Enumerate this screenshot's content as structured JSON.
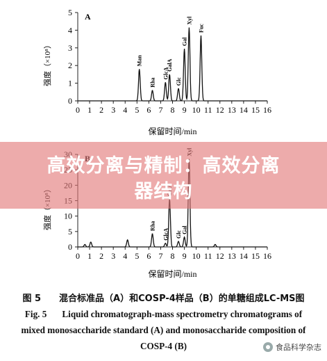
{
  "chart_data": [
    {
      "panel": "A",
      "type": "line",
      "ylabel": "强度（×10⁸）",
      "xlabel": "保留时间/min",
      "xlim": [
        0,
        16
      ],
      "ylim": [
        0,
        5
      ],
      "xticks": [
        0,
        1,
        2,
        3,
        4,
        5,
        6,
        7,
        8,
        9,
        10,
        11,
        12,
        13,
        14,
        15,
        16
      ],
      "yticks": [
        0,
        1,
        2,
        3,
        4,
        5
      ],
      "peaks": [
        {
          "label": "Man",
          "x": 5.2,
          "y": 1.8
        },
        {
          "label": "Rha",
          "x": 6.3,
          "y": 0.6
        },
        {
          "label": "GlcA",
          "x": 7.4,
          "y": 1.05
        },
        {
          "label": "GalA",
          "x": 7.75,
          "y": 1.5
        },
        {
          "label": "Glc",
          "x": 8.5,
          "y": 0.7
        },
        {
          "label": "Gal",
          "x": 9.0,
          "y": 2.95
        },
        {
          "label": "Xyl",
          "x": 9.4,
          "y": 4.15
        },
        {
          "label": "Fuc",
          "x": 10.4,
          "y": 3.7
        }
      ]
    },
    {
      "panel": "B",
      "type": "line",
      "ylabel": "强度（×10⁸）",
      "xlabel": "保留时间/min",
      "xlim": [
        0,
        16
      ],
      "ylim": [
        0,
        30
      ],
      "xticks": [
        0,
        1,
        2,
        3,
        4,
        5,
        6,
        7,
        8,
        9,
        10,
        11,
        12,
        13,
        14,
        15,
        16
      ],
      "yticks": [
        0,
        5,
        10,
        15,
        20,
        25,
        30
      ],
      "peaks": [
        {
          "label": "",
          "x": 0.6,
          "y": 0.8
        },
        {
          "label": "",
          "x": 1.1,
          "y": 1.6
        },
        {
          "label": "",
          "x": 4.2,
          "y": 2.3
        },
        {
          "label": "Rha",
          "x": 6.3,
          "y": 4.3
        },
        {
          "label": "GlcA",
          "x": 7.4,
          "y": 1.2
        },
        {
          "label": "GalA",
          "x": 7.75,
          "y": 15.5
        },
        {
          "label": "Glc",
          "x": 8.5,
          "y": 1.8
        },
        {
          "label": "Gal",
          "x": 9.0,
          "y": 3.2
        },
        {
          "label": "Xyl",
          "x": 9.4,
          "y": 28.5
        },
        {
          "label": "",
          "x": 11.6,
          "y": 0.8
        }
      ]
    }
  ],
  "overlay": {
    "line1": "高效分离与精制：高效分离",
    "line2": "器结构"
  },
  "caption": {
    "zh_fig": "图 5",
    "zh_text": "混合标准品（A）和COSP-4样品（B）的单糖组成LC-MS图",
    "en_fig": "Fig. 5",
    "en_line1": "Liquid chromatograph-mass spectrometry chromatograms of",
    "en_line2": "mixed monosaccharide standard (A) and monosaccharide composition of",
    "en_line3": "COSP-4 (B)"
  },
  "watermark": "食品科学杂志"
}
